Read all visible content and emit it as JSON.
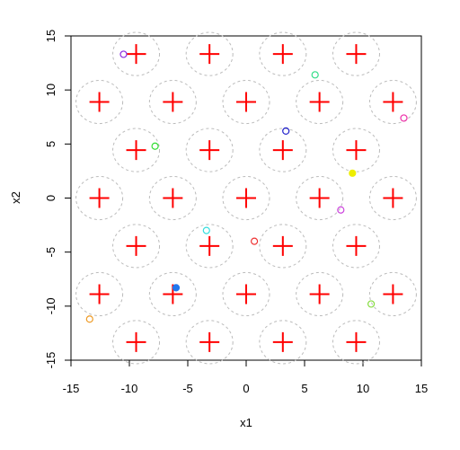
{
  "chart_data": {
    "type": "scatter",
    "xlabel": "x1",
    "ylabel": "x2",
    "xlim": [
      -15,
      15
    ],
    "ylim": [
      -15,
      15
    ],
    "xticks": [
      -15,
      -10,
      -5,
      0,
      5,
      10,
      15
    ],
    "yticks": [
      -15,
      -10,
      -5,
      0,
      5,
      10,
      15
    ],
    "centers": {
      "color": "#ff0000",
      "radius": 2,
      "x": [
        -9.42,
        -3.14,
        3.14,
        9.42,
        -12.57,
        -6.28,
        0,
        6.28,
        12.57,
        -9.42,
        -3.14,
        3.14,
        9.42,
        -12.57,
        -6.28,
        0,
        6.28,
        12.57,
        -9.42,
        -3.14,
        3.14,
        9.42,
        -12.57,
        -6.28,
        0,
        6.28,
        12.57,
        -9.42,
        -3.14,
        3.14,
        9.42
      ],
      "y": [
        13.33,
        13.33,
        13.33,
        13.33,
        8.89,
        8.89,
        8.89,
        8.89,
        8.89,
        4.44,
        4.44,
        4.44,
        4.44,
        0,
        0,
        0,
        0,
        0,
        -4.44,
        -4.44,
        -4.44,
        -4.44,
        -8.89,
        -8.89,
        -8.89,
        -8.89,
        -8.89,
        -13.33,
        -13.33,
        -13.33,
        -13.33
      ]
    },
    "points": {
      "x": [
        -10.5,
        5.9,
        13.5,
        -7.8,
        3.4,
        9.1,
        8.1,
        -3.4,
        0.7,
        -6.0,
        10.7,
        -13.4
      ],
      "y": [
        13.3,
        11.4,
        7.4,
        4.8,
        6.2,
        2.3,
        -1.1,
        -3.0,
        -4.0,
        -8.3,
        -9.8,
        -11.2
      ],
      "colors": [
        "#8a2be2",
        "#33dd88",
        "#ee33aa",
        "#33dd33",
        "#2222cc",
        "#eeee00",
        "#cc44dd",
        "#33dddd",
        "#ee3333",
        "#2277ee",
        "#88dd44",
        "#ee9922"
      ],
      "filled": [
        false,
        false,
        false,
        false,
        false,
        true,
        false,
        false,
        false,
        true,
        false,
        false
      ]
    }
  }
}
